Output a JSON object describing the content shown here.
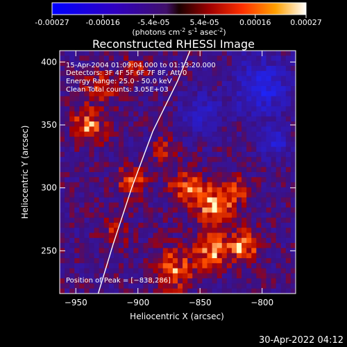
{
  "colorbar": {
    "tick_labels": [
      "-0.00027",
      "-0.00016",
      "-5.4e-05",
      "5.4e-05",
      "0.00016",
      "0.00027"
    ],
    "unit_parts": {
      "a": "(photons cm",
      "b": "-2",
      "c": " s",
      "d": "-1",
      "e": " asec",
      "f": "-2",
      "g": ")"
    },
    "range": [
      -0.00027,
      0.00027
    ]
  },
  "chart_data": {
    "type": "heatmap",
    "title": "Reconstructed RHESSI Image",
    "xlabel": "Heliocentric X (arcsec)",
    "ylabel": "Heliocentric Y (arcsec)",
    "xlim": [
      -963,
      -773
    ],
    "ylim": [
      216,
      409
    ],
    "x_ticks": [
      -950,
      -900,
      -850,
      -800
    ],
    "x_tick_labels": [
      "−950",
      "−900",
      "−850",
      "−800"
    ],
    "y_ticks": [
      250,
      300,
      350,
      400
    ],
    "y_tick_labels": [
      "250",
      "300",
      "350",
      "400"
    ],
    "annotations": {
      "time_range": "15-Apr-2004 01:09:04.000 to 01:13:20.000",
      "detectors": "Detectors: 3F 4F 5F 6F 7F 8F, Att 0",
      "energy": "Energy Range: 25.0 - 50.0 keV",
      "clean": "Clean     Total counts: 3.05E+03",
      "peak": "Position of Peak = [−838,286]"
    },
    "peak_position": [
      -838,
      286
    ],
    "total_counts": 3050,
    "energy_range_keV": [
      25.0,
      50.0
    ],
    "limb_points": [
      [
        -932,
        216
      ],
      [
        -920,
        255
      ],
      [
        -905,
        300
      ],
      [
        -888,
        345
      ],
      [
        -868,
        385
      ],
      [
        -858,
        409
      ]
    ],
    "grid": false
  },
  "timestamp": "30-Apr-2022 04:12"
}
